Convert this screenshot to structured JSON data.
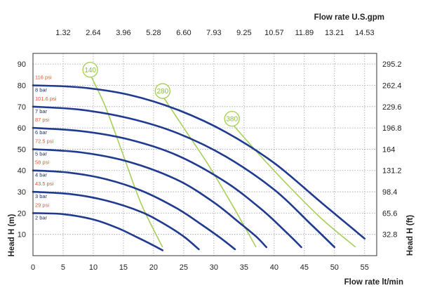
{
  "chart_data": {
    "type": "line",
    "title": "",
    "xlabel": "Flow rate  lt/min",
    "ylabel": "Head H (m)",
    "top_axis_label": "Flow rate U.S.gpm",
    "right_axis_label": "Head H (ft)",
    "xlim": [
      0,
      57
    ],
    "ylim": [
      0,
      95
    ],
    "x_ticks": [
      "0",
      "5",
      "10",
      "15",
      "20",
      "25",
      "30",
      "35",
      "40",
      "45",
      "50",
      "55"
    ],
    "x_tick_values": [
      0,
      5,
      10,
      15,
      20,
      25,
      30,
      35,
      40,
      45,
      50,
      55
    ],
    "y_ticks": [
      "10",
      "20",
      "30",
      "40",
      "50",
      "60",
      "70",
      "80",
      "90"
    ],
    "y_tick_values": [
      10,
      20,
      30,
      40,
      50,
      60,
      70,
      80,
      90
    ],
    "top_ticks": [
      "1.32",
      "2.64",
      "3.96",
      "5.28",
      "6.60",
      "7.93",
      "9.25",
      "10.57",
      "11.89",
      "13.21",
      "14.53"
    ],
    "top_tick_positions_lpm": [
      5,
      10,
      15,
      20,
      25,
      30,
      35,
      40,
      45,
      50,
      55
    ],
    "right_ticks": [
      "32.8",
      "65.6",
      "98.4",
      "131.2",
      "164",
      "196.8",
      "229.6",
      "262.4",
      "295.2"
    ],
    "right_tick_positions_m": [
      10,
      20,
      30,
      40,
      50,
      60,
      70,
      80,
      90
    ],
    "grid": true,
    "colors": {
      "pressure_curve": "#1f3a8f",
      "air_curve": "#a6d05a",
      "psi_text": "#e2572b",
      "bar_text": "#1c2c7c",
      "grid": "#9aa0a8"
    },
    "pressure_series": [
      {
        "psi": "116 psi",
        "bar": "8 bar",
        "x": [
          0,
          8,
          16,
          24,
          32,
          40,
          48,
          55
        ],
        "y": [
          80,
          79,
          75.5,
          68.5,
          58,
          43.5,
          24.5,
          8
        ]
      },
      {
        "psi": "101.6 psi",
        "bar": "7 bar",
        "x": [
          0,
          8,
          16,
          24,
          32,
          40,
          46,
          50
        ],
        "y": [
          70,
          68.5,
          64.5,
          57.5,
          46.5,
          31,
          15,
          4
        ]
      },
      {
        "psi": "87 psi",
        "bar": "6 bar",
        "x": [
          0,
          8,
          16,
          24,
          32,
          38,
          42,
          44.5
        ],
        "y": [
          60,
          58.5,
          54.5,
          47,
          34.5,
          21.5,
          11,
          4
        ]
      },
      {
        "psi": "72.5 psi",
        "bar": "5 bar",
        "x": [
          0,
          8,
          16,
          24,
          30,
          34,
          37,
          38.7
        ],
        "y": [
          50,
          48.5,
          44,
          35.5,
          25,
          16,
          9,
          4
        ]
      },
      {
        "psi": "58 psi",
        "bar": "4 bar",
        "x": [
          0,
          6,
          12,
          18,
          24,
          28,
          31,
          33.5
        ],
        "y": [
          40,
          39,
          36,
          30.5,
          22,
          14.5,
          8.5,
          3
        ]
      },
      {
        "psi": "43.5 psi",
        "bar": "3 bar",
        "x": [
          0,
          6,
          12,
          18,
          22,
          25,
          27.5
        ],
        "y": [
          30,
          29,
          26,
          20.5,
          14.5,
          9,
          3
        ]
      },
      {
        "psi": "29 psi",
        "bar": "2 bar",
        "x": [
          0,
          5,
          10,
          14,
          17,
          19.5,
          21.5
        ],
        "y": [
          20,
          19.5,
          17,
          13,
          9,
          5.5,
          2.5
        ]
      }
    ],
    "air_series": [
      {
        "name": "140",
        "x": [
          9.5,
          12,
          15,
          18,
          21.5
        ],
        "y": [
          85,
          70,
          47,
          24,
          4
        ]
      },
      {
        "name": "280",
        "x": [
          21.5,
          25,
          29,
          33,
          37
        ],
        "y": [
          75,
          60,
          43,
          24,
          4
        ]
      },
      {
        "name": "380",
        "x": [
          33,
          38,
          43,
          48,
          53.5
        ],
        "y": [
          62,
          46,
          31,
          17,
          4
        ]
      }
    ]
  }
}
